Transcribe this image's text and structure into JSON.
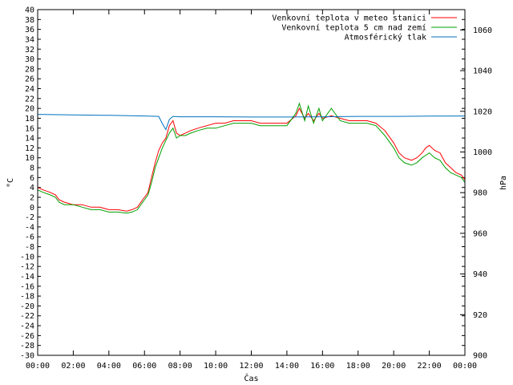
{
  "chart_data": {
    "type": "line",
    "title": "",
    "xlabel": "Čas",
    "ylabel_left": "°C",
    "ylabel_right": "hPa",
    "x_range_hours": [
      0,
      24
    ],
    "x_ticks": [
      "00:00",
      "02:00",
      "04:00",
      "06:00",
      "08:00",
      "10:00",
      "12:00",
      "14:00",
      "16:00",
      "18:00",
      "20:00",
      "22:00",
      "00:00"
    ],
    "ylim_left": [
      -30,
      40
    ],
    "y_left_step": 2,
    "ylim_right": [
      900,
      1070
    ],
    "y_right_ticks": [
      900,
      920,
      940,
      960,
      980,
      1000,
      1020,
      1040,
      1060
    ],
    "grid": false,
    "legend_position": "top-right",
    "series": [
      {
        "name": "Venkovní teplota v meteo stanici",
        "color": "#ff0000",
        "axis": "left",
        "x": [
          0,
          0.3,
          0.7,
          1.0,
          1.2,
          1.5,
          2.0,
          2.5,
          3.0,
          3.5,
          4.0,
          4.5,
          5.0,
          5.3,
          5.6,
          5.9,
          6.0,
          6.2,
          6.4,
          6.6,
          6.8,
          7.0,
          7.2,
          7.4,
          7.6,
          7.8,
          8.0,
          8.3,
          8.6,
          9.0,
          9.5,
          10.0,
          10.5,
          11.0,
          11.5,
          12.0,
          12.5,
          13.0,
          13.5,
          14.0,
          14.5,
          14.7,
          15.0,
          15.2,
          15.5,
          15.8,
          16.0,
          16.5,
          17.0,
          17.5,
          18.0,
          18.5,
          19.0,
          19.5,
          20.0,
          20.3,
          20.6,
          21.0,
          21.3,
          21.6,
          21.8,
          22.0,
          22.3,
          22.6,
          22.9,
          23.2,
          23.5,
          23.8,
          24.0
        ],
        "values": [
          4,
          3.5,
          3,
          2.5,
          1.5,
          1,
          0.5,
          0.5,
          0,
          0,
          -0.5,
          -0.5,
          -0.8,
          -0.5,
          0,
          1.5,
          2,
          3,
          6,
          9,
          11.5,
          13,
          14,
          16.5,
          17.5,
          15,
          14.5,
          15,
          15.5,
          16,
          16.5,
          17,
          17,
          17.5,
          17.5,
          17.5,
          17,
          17,
          17,
          17,
          18.5,
          20,
          18,
          19,
          17.5,
          19,
          18,
          18.5,
          18,
          17.5,
          17.5,
          17.5,
          17,
          15.5,
          13,
          11,
          10,
          9.5,
          10,
          11,
          12,
          12.5,
          11.5,
          11,
          9,
          8,
          7,
          6.5,
          5.5
        ]
      },
      {
        "name": "Venkovní teplota 5 cm nad zemí",
        "color": "#00a000",
        "axis": "left",
        "x": [
          0,
          0.3,
          0.7,
          1.0,
          1.2,
          1.5,
          2.0,
          2.5,
          3.0,
          3.5,
          4.0,
          4.5,
          5.0,
          5.3,
          5.6,
          5.9,
          6.0,
          6.2,
          6.4,
          6.6,
          6.8,
          7.0,
          7.2,
          7.4,
          7.6,
          7.8,
          8.0,
          8.3,
          8.6,
          9.0,
          9.5,
          10.0,
          10.5,
          11.0,
          11.5,
          12.0,
          12.5,
          13.0,
          13.5,
          14.0,
          14.5,
          14.7,
          15.0,
          15.2,
          15.5,
          15.8,
          16.0,
          16.5,
          17.0,
          17.5,
          18.0,
          18.5,
          19.0,
          19.5,
          20.0,
          20.3,
          20.6,
          21.0,
          21.3,
          21.6,
          21.8,
          22.0,
          22.3,
          22.6,
          22.9,
          23.2,
          23.5,
          23.8,
          24.0
        ],
        "values": [
          3.5,
          3,
          2.5,
          2,
          1,
          0.5,
          0.5,
          0,
          -0.5,
          -0.5,
          -1,
          -1,
          -1.2,
          -1,
          -0.5,
          1,
          1.5,
          2.5,
          5,
          8,
          10,
          12,
          13.5,
          15,
          16,
          14,
          14.5,
          14.5,
          15,
          15.5,
          16,
          16,
          16.5,
          17,
          17,
          17,
          16.5,
          16.5,
          16.5,
          16.5,
          19,
          21,
          17.5,
          20.5,
          17,
          20,
          17.5,
          20,
          17.5,
          17,
          17,
          17,
          16.5,
          14.5,
          12,
          10,
          9,
          8.5,
          9,
          10,
          10.5,
          11,
          10,
          9.5,
          8,
          7,
          6.5,
          6,
          5
        ]
      },
      {
        "name": "Atmosférický tlak",
        "color": "#0070c0",
        "axis": "right",
        "x": [
          0,
          2,
          4,
          6,
          6.8,
          7.0,
          7.2,
          7.4,
          7.6,
          8,
          10,
          12,
          14,
          16,
          18,
          20,
          22,
          24
        ],
        "values": [
          1018.5,
          1018.2,
          1018,
          1017.7,
          1017.5,
          1014,
          1011,
          1016,
          1017.5,
          1017.3,
          1017.3,
          1017.2,
          1017.2,
          1017.3,
          1017.5,
          1017.5,
          1017.6,
          1017.7
        ]
      }
    ]
  }
}
